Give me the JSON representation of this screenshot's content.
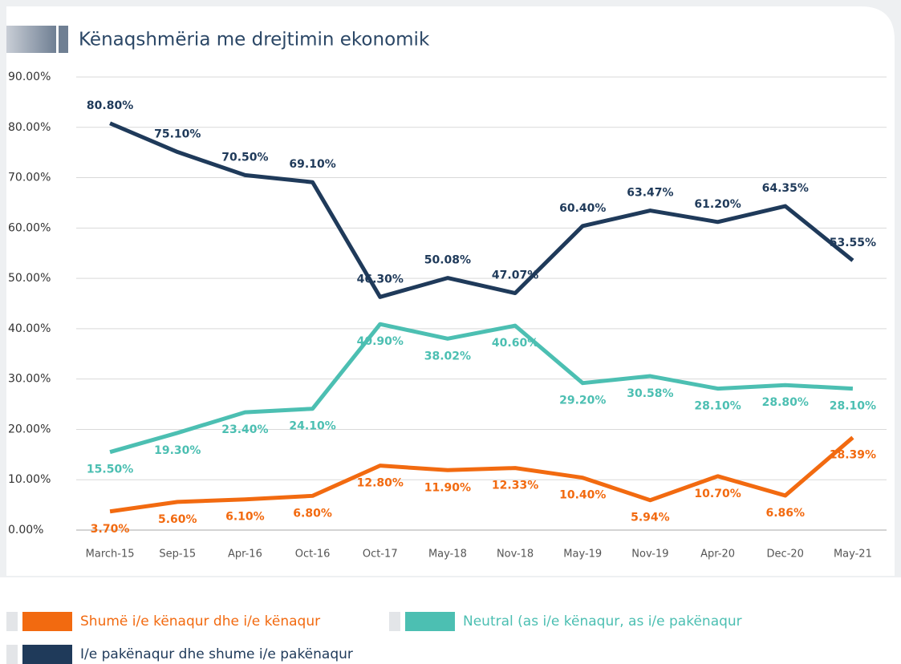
{
  "chart_data": {
    "type": "line",
    "title": "Kënaqshmëria me drejtimin ekonomik",
    "categories": [
      "March-15",
      "Sep-15",
      "Apr-16",
      "Oct-16",
      "Oct-17",
      "May-18",
      "Nov-18",
      "May-19",
      "Nov-19",
      "Apr-20",
      "Dec-20",
      "May-21"
    ],
    "series": [
      {
        "name": "Shumë i/e kënaqur dhe i/e kënaqur",
        "color": "#f26a10",
        "values": [
          3.7,
          5.6,
          6.1,
          6.8,
          12.8,
          11.9,
          12.33,
          10.4,
          5.94,
          10.7,
          6.86,
          18.39
        ],
        "value_labels": [
          "3.70%",
          "5.60%",
          "6.10%",
          "6.80%",
          "12.80%",
          "11.90%",
          "12.33%",
          "10.40%",
          "5.94%",
          "10.70%",
          "6.86%",
          "18.39%"
        ]
      },
      {
        "name": "Neutral (as i/e kënaqur, as i/e pakënaqur",
        "color": "#4cbfb2",
        "values": [
          15.5,
          19.3,
          23.4,
          24.1,
          40.9,
          38.02,
          40.6,
          29.2,
          30.58,
          28.1,
          28.8,
          28.1
        ],
        "value_labels": [
          "15.50%",
          "19.30%",
          "23.40%",
          "24.10%",
          "40.90%",
          "38.02%",
          "40.60%",
          "29.20%",
          "30.58%",
          "28.10%",
          "28.80%",
          "28.10%"
        ]
      },
      {
        "name": "I/e pakënaqur dhe shume i/e pakënaqur",
        "color": "#1f3a5a",
        "values": [
          80.8,
          75.1,
          70.5,
          69.1,
          46.3,
          50.08,
          47.07,
          60.4,
          63.47,
          61.2,
          64.35,
          53.55
        ],
        "value_labels": [
          "80.80%",
          "75.10%",
          "70.50%",
          "69.10%",
          "46.30%",
          "50.08%",
          "47.07%",
          "60.40%",
          "63.47%",
          "61.20%",
          "64.35%",
          "53.55%"
        ]
      }
    ],
    "ylim": [
      0,
      90
    ],
    "yticks": [
      {
        "value": 0,
        "label": "0.00%"
      },
      {
        "value": 10,
        "label": "10.00%"
      },
      {
        "value": 20,
        "label": "20.00%"
      },
      {
        "value": 30,
        "label": "30.00%"
      },
      {
        "value": 40,
        "label": "40.00%"
      },
      {
        "value": 50,
        "label": "50.00%"
      },
      {
        "value": 60,
        "label": "60.00%"
      },
      {
        "value": 70,
        "label": "70.00%"
      },
      {
        "value": 80,
        "label": "80.00%"
      },
      {
        "value": 90,
        "label": "90.00%"
      }
    ],
    "grid": true
  }
}
